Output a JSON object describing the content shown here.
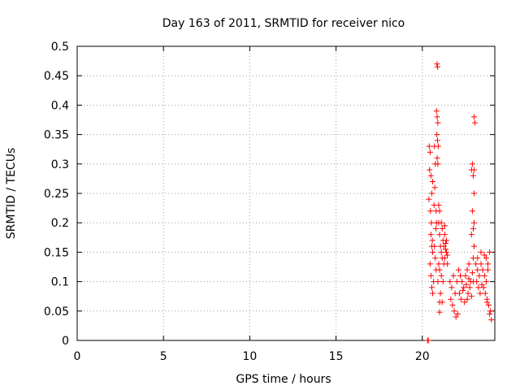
{
  "chart_data": {
    "type": "scatter",
    "title": "Day 163 of 2011, SRMTID for receiver nico",
    "xlabel": "GPS time / hours",
    "ylabel": "SRMTID / TECUs",
    "xlim": [
      0,
      24.2
    ],
    "ylim": [
      0,
      0.5
    ],
    "xticks": [
      0,
      5,
      10,
      15,
      20
    ],
    "xtick_labels": [
      "0",
      "5",
      "10",
      "15",
      "20"
    ],
    "yticks": [
      0,
      0.05,
      0.1,
      0.15,
      0.2,
      0.25,
      0.3,
      0.35,
      0.4,
      0.45,
      0.5
    ],
    "ytick_labels": [
      "0",
      "0.05",
      "0.1",
      "0.15",
      "0.2",
      "0.25",
      "0.3",
      "0.35",
      "0.4",
      "0.45",
      "0.5"
    ],
    "grid": true,
    "marker": "+",
    "color": "#ff0000",
    "series": [
      {
        "name": "SRMTID",
        "points": [
          [
            20.3,
            0.0
          ],
          [
            20.35,
            0.0
          ],
          [
            20.4,
            0.33
          ],
          [
            20.45,
            0.32
          ],
          [
            20.42,
            0.29
          ],
          [
            20.5,
            0.28
          ],
          [
            20.38,
            0.24
          ],
          [
            20.47,
            0.22
          ],
          [
            20.55,
            0.25
          ],
          [
            20.6,
            0.27
          ],
          [
            20.5,
            0.18
          ],
          [
            20.55,
            0.16
          ],
          [
            20.6,
            0.15
          ],
          [
            20.45,
            0.13
          ],
          [
            20.5,
            0.11
          ],
          [
            20.55,
            0.09
          ],
          [
            20.6,
            0.08
          ],
          [
            20.65,
            0.1
          ],
          [
            20.52,
            0.2
          ],
          [
            20.58,
            0.17
          ],
          [
            20.7,
            0.33
          ],
          [
            20.75,
            0.3
          ],
          [
            20.72,
            0.26
          ],
          [
            20.8,
            0.22
          ],
          [
            20.78,
            0.19
          ],
          [
            20.7,
            0.16
          ],
          [
            20.75,
            0.14
          ],
          [
            20.8,
            0.12
          ],
          [
            20.68,
            0.23
          ],
          [
            20.82,
            0.2
          ],
          [
            20.85,
            0.47
          ],
          [
            20.88,
            0.465
          ],
          [
            20.82,
            0.39
          ],
          [
            20.86,
            0.38
          ],
          [
            20.9,
            0.37
          ],
          [
            20.84,
            0.35
          ],
          [
            20.88,
            0.34
          ],
          [
            20.92,
            0.33
          ],
          [
            20.86,
            0.31
          ],
          [
            20.9,
            0.3
          ],
          [
            20.95,
            0.23
          ],
          [
            21.0,
            0.22
          ],
          [
            20.95,
            0.2
          ],
          [
            21.0,
            0.18
          ],
          [
            21.05,
            0.16
          ],
          [
            20.95,
            0.13
          ],
          [
            21.0,
            0.12
          ],
          [
            20.9,
            0.1
          ],
          [
            21.0,
            0.065
          ],
          [
            21.0,
            0.048
          ],
          [
            21.1,
            0.2
          ],
          [
            21.15,
            0.19
          ],
          [
            21.2,
            0.17
          ],
          [
            21.1,
            0.15
          ],
          [
            21.15,
            0.14
          ],
          [
            21.25,
            0.13
          ],
          [
            21.1,
            0.11
          ],
          [
            21.2,
            0.1
          ],
          [
            21.05,
            0.08
          ],
          [
            21.15,
            0.065
          ],
          [
            21.3,
            0.18
          ],
          [
            21.35,
            0.165
          ],
          [
            21.4,
            0.15
          ],
          [
            21.3,
            0.14
          ],
          [
            21.45,
            0.13
          ],
          [
            21.35,
            0.155
          ],
          [
            21.4,
            0.17
          ],
          [
            21.25,
            0.16
          ],
          [
            21.3,
            0.195
          ],
          [
            21.45,
            0.145
          ],
          [
            21.6,
            0.1
          ],
          [
            21.7,
            0.09
          ],
          [
            21.8,
            0.11
          ],
          [
            21.9,
            0.08
          ],
          [
            22.0,
            0.1
          ],
          [
            21.65,
            0.07
          ],
          [
            21.75,
            0.06
          ],
          [
            21.85,
            0.05
          ],
          [
            21.95,
            0.04
          ],
          [
            22.05,
            0.045
          ],
          [
            22.1,
            0.12
          ],
          [
            22.2,
            0.11
          ],
          [
            22.3,
            0.1
          ],
          [
            22.4,
            0.09
          ],
          [
            22.5,
            0.11
          ],
          [
            22.15,
            0.08
          ],
          [
            22.25,
            0.07
          ],
          [
            22.35,
            0.085
          ],
          [
            22.45,
            0.065
          ],
          [
            22.55,
            0.095
          ],
          [
            22.6,
            0.12
          ],
          [
            22.7,
            0.13
          ],
          [
            22.8,
            0.1
          ],
          [
            22.9,
            0.115
          ],
          [
            22.65,
            0.08
          ],
          [
            22.75,
            0.09
          ],
          [
            22.85,
            0.075
          ],
          [
            22.95,
            0.1
          ],
          [
            22.7,
            0.105
          ],
          [
            22.6,
            0.07
          ],
          [
            22.85,
            0.29
          ],
          [
            22.9,
            0.3
          ],
          [
            22.95,
            0.28
          ],
          [
            23.0,
            0.25
          ],
          [
            22.9,
            0.22
          ],
          [
            22.95,
            0.19
          ],
          [
            23.0,
            0.16
          ],
          [
            22.85,
            0.18
          ],
          [
            22.95,
            0.14
          ],
          [
            23.0,
            0.2
          ],
          [
            23.0,
            0.38
          ],
          [
            23.05,
            0.37
          ],
          [
            23.0,
            0.29
          ],
          [
            23.1,
            0.13
          ],
          [
            23.2,
            0.12
          ],
          [
            23.3,
            0.11
          ],
          [
            23.4,
            0.13
          ],
          [
            23.15,
            0.1
          ],
          [
            23.25,
            0.09
          ],
          [
            23.35,
            0.08
          ],
          [
            23.45,
            0.095
          ],
          [
            23.2,
            0.14
          ],
          [
            23.4,
            0.15
          ],
          [
            23.5,
            0.12
          ],
          [
            23.6,
            0.11
          ],
          [
            23.7,
            0.1
          ],
          [
            23.8,
            0.12
          ],
          [
            23.55,
            0.09
          ],
          [
            23.65,
            0.08
          ],
          [
            23.75,
            0.07
          ],
          [
            23.85,
            0.06
          ],
          [
            23.95,
            0.05
          ],
          [
            24.0,
            0.035
          ],
          [
            23.7,
            0.14
          ],
          [
            23.8,
            0.13
          ],
          [
            23.9,
            0.15
          ],
          [
            23.6,
            0.145
          ],
          [
            23.75,
            0.065
          ],
          [
            23.9,
            0.045
          ]
        ]
      }
    ]
  }
}
